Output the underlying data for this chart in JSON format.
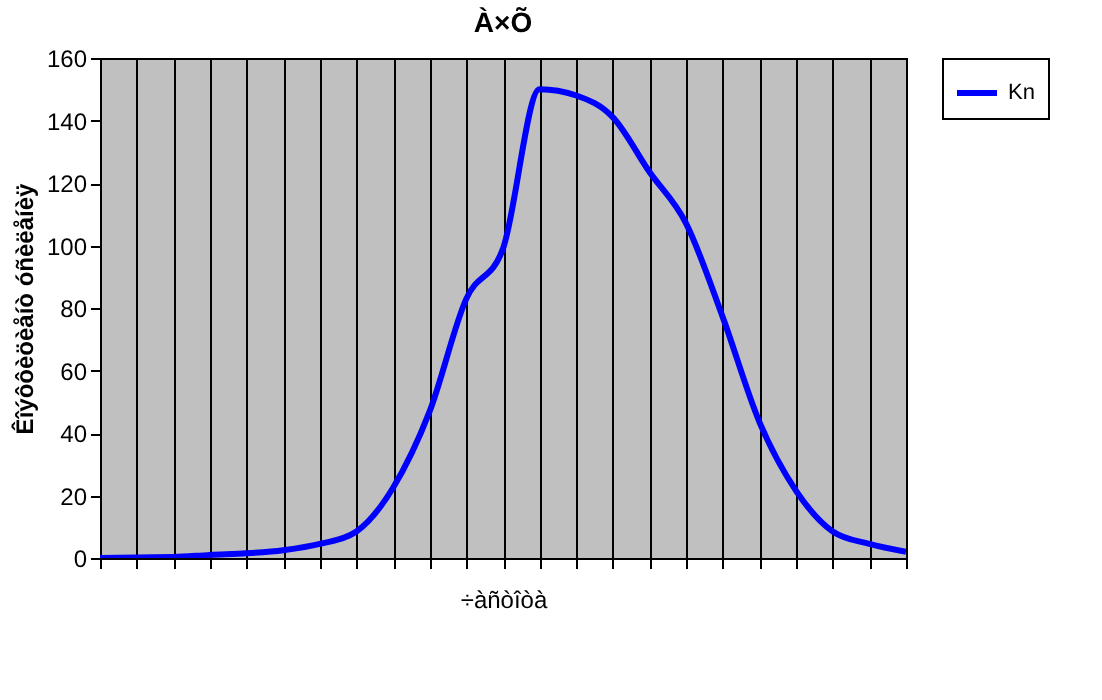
{
  "chart_data": {
    "type": "line",
    "title": "À×Õ",
    "xlabel": "÷àñòîòà",
    "ylabel": "Êîýôôèöèåíò óñèëåíèÿ",
    "categories": [
      null,
      null,
      null,
      null,
      null,
      null,
      null,
      null,
      null,
      null,
      null,
      null,
      null,
      null,
      null,
      null,
      null,
      null,
      null,
      null,
      null,
      null,
      null
    ],
    "series": [
      {
        "name": "Kn",
        "color": "#0000ff",
        "values": [
          0,
          0.2,
          0.3,
          1,
          1.5,
          2.5,
          4.5,
          8.5,
          22.5,
          47,
          83,
          99,
          150,
          148,
          141,
          123.5,
          107,
          77,
          43.5,
          21.5,
          8.5,
          4.5,
          2
        ]
      }
    ],
    "ylim": [
      0,
      160
    ],
    "yticks": [
      0,
      20,
      40,
      60,
      80,
      100,
      120,
      140,
      160
    ],
    "grid": "x",
    "legend": "right",
    "tick_labels": "y",
    "marker": "none",
    "line_style": "solid"
  }
}
